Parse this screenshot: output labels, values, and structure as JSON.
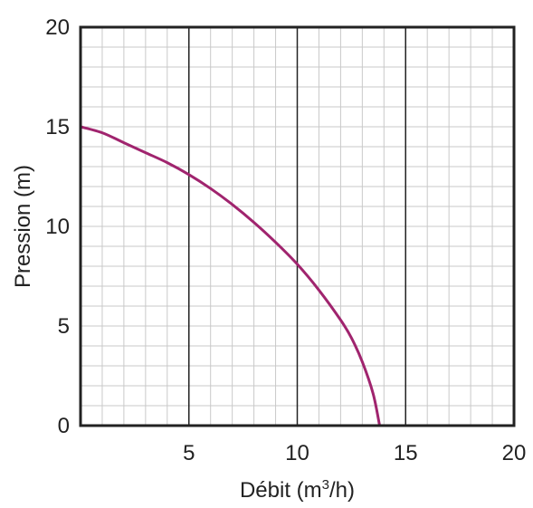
{
  "chart_data": {
    "type": "line",
    "xlabel": {
      "prefix": "Débit (m",
      "sup": "3",
      "suffix": "/h)"
    },
    "ylabel": "Pression (m)",
    "xlim": [
      0,
      20
    ],
    "ylim": [
      0,
      20
    ],
    "x_ticks": [
      "5",
      "10",
      "15",
      "20"
    ],
    "y_ticks": [
      "0",
      "5",
      "10",
      "15",
      "20"
    ],
    "grid": true,
    "series": [
      {
        "color": "#a0246e",
        "points": [
          [
            0,
            15.0
          ],
          [
            1,
            14.7
          ],
          [
            2,
            14.2
          ],
          [
            3,
            13.7
          ],
          [
            4,
            13.2
          ],
          [
            5,
            12.6
          ],
          [
            6,
            11.9
          ],
          [
            7,
            11.1
          ],
          [
            8,
            10.2
          ],
          [
            9,
            9.2
          ],
          [
            10,
            8.1
          ],
          [
            11,
            6.8
          ],
          [
            12,
            5.3
          ],
          [
            12.5,
            4.4
          ],
          [
            13,
            3.2
          ],
          [
            13.5,
            1.6
          ],
          [
            13.8,
            0
          ]
        ]
      }
    ]
  }
}
